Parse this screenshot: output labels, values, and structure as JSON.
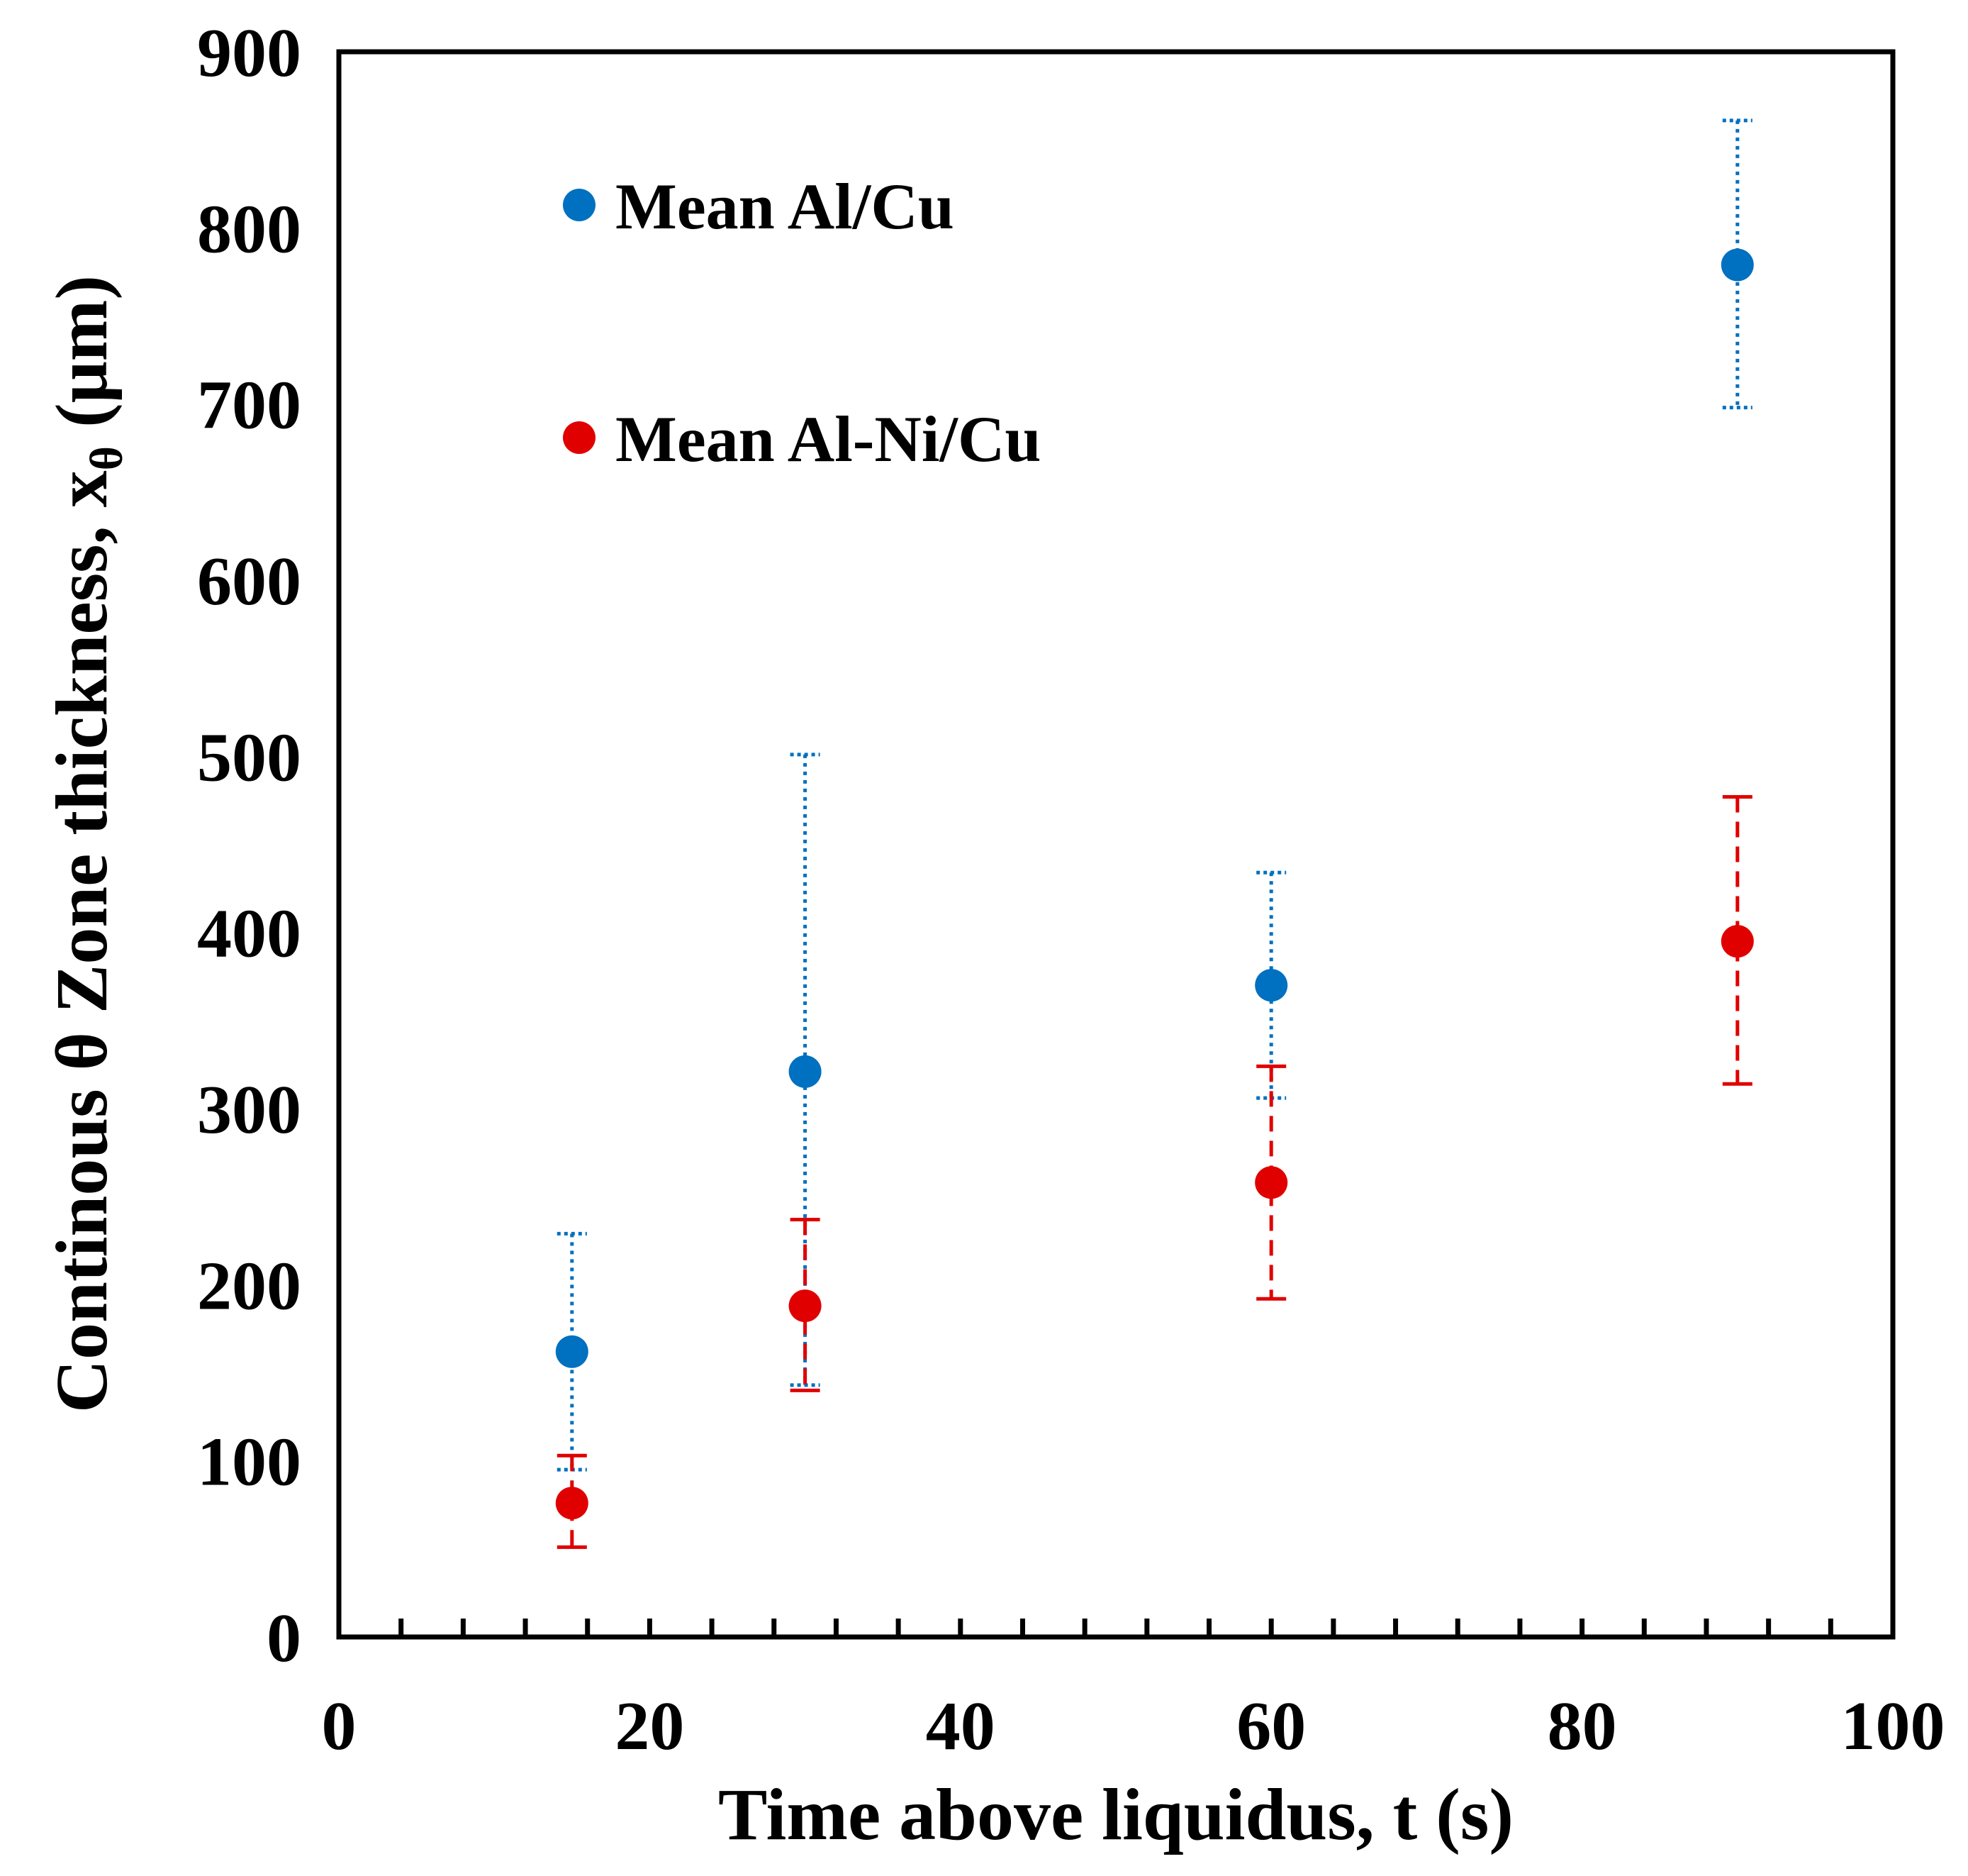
{
  "chart_data": {
    "type": "scatter",
    "title": "",
    "xlabel": "Time above liquidus, t (s)",
    "ylabel": {
      "main": "Continous θ Zone thickness, x",
      "subscript": "θ",
      "unit": " (μm)"
    },
    "xlim": [
      0,
      100
    ],
    "ylim": [
      0,
      900
    ],
    "x_ticks": [
      0,
      20,
      40,
      60,
      80,
      100
    ],
    "x_tick_labels": [
      "0",
      "20",
      "40",
      "60",
      "80",
      "100"
    ],
    "x_minor_step": 4,
    "y_ticks": [
      0,
      100,
      200,
      300,
      400,
      500,
      600,
      700,
      800,
      900
    ],
    "y_tick_labels": [
      "0",
      "100",
      "200",
      "300",
      "400",
      "500",
      "600",
      "700",
      "800",
      "900"
    ],
    "grid": false,
    "legend_position": "top-left",
    "series": [
      {
        "name": "Mean Al/Cu",
        "color": "#0070C0",
        "error_style": "dotted",
        "points": [
          {
            "x": 15,
            "y": 162,
            "err_low": 95,
            "err_high": 229
          },
          {
            "x": 30,
            "y": 321,
            "err_low": 143,
            "err_high": 501
          },
          {
            "x": 60,
            "y": 370,
            "err_low": 306,
            "err_high": 434
          },
          {
            "x": 90,
            "y": 779,
            "err_low": 698,
            "err_high": 861
          }
        ]
      },
      {
        "name": "Mean Al-Ni/Cu",
        "color": "#E00000",
        "error_style": "dashed",
        "points": [
          {
            "x": 15,
            "y": 76,
            "err_low": 51,
            "err_high": 103
          },
          {
            "x": 30,
            "y": 188,
            "err_low": 140,
            "err_high": 237
          },
          {
            "x": 60,
            "y": 258,
            "err_low": 192,
            "err_high": 324
          },
          {
            "x": 90,
            "y": 395,
            "err_low": 314,
            "err_high": 477
          }
        ]
      }
    ]
  }
}
